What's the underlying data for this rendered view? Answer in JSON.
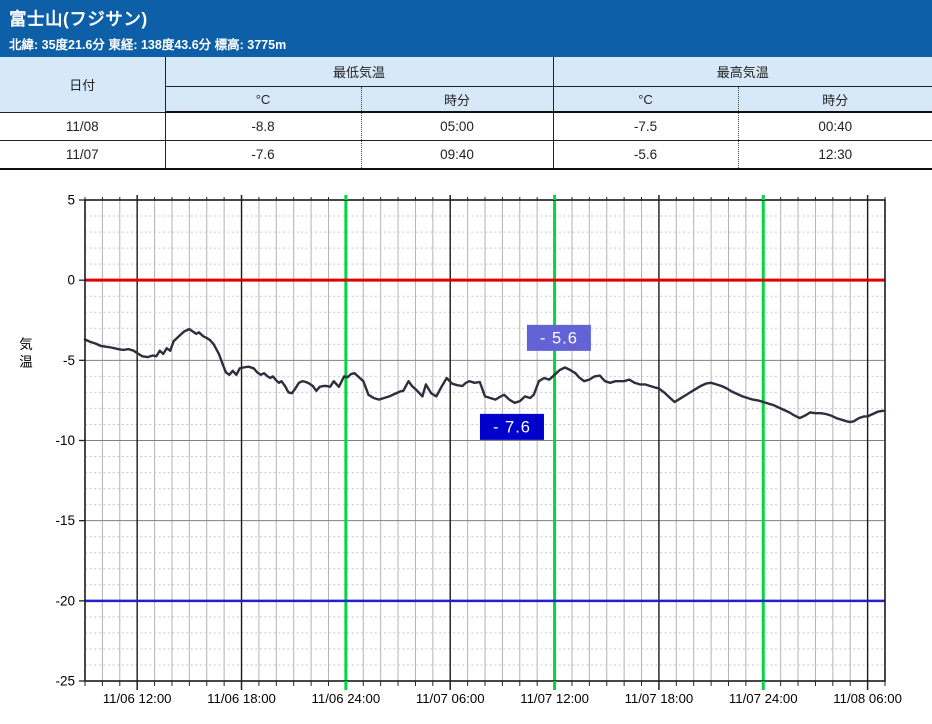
{
  "header": {
    "title": "富士山(フジサン)",
    "coordinates": "北緯: 35度21.6分 東経: 138度43.6分 標高: 3775m"
  },
  "table": {
    "col_date": "日付",
    "group_min": "最低気温",
    "group_max": "最高気温",
    "col_c": "°C",
    "col_time": "時分",
    "rows": [
      {
        "date": "11/08",
        "min_c": "-8.8",
        "min_time": "05:00",
        "max_c": "-7.5",
        "max_time": "00:40"
      },
      {
        "date": "11/07",
        "min_c": "-7.6",
        "min_time": "09:40",
        "max_c": "-5.6",
        "max_time": "12:30"
      }
    ]
  },
  "chart_data": {
    "type": "line",
    "title": "",
    "xlabel": "",
    "ylabel": "気温",
    "ylim": [
      -25,
      5
    ],
    "grid": true,
    "y_ticks": [
      5,
      0,
      -5,
      -10,
      -15,
      -20,
      -25
    ],
    "hours_span": [
      0,
      46
    ],
    "x_ticks": [
      {
        "label": "11/06 12:00",
        "hour": 3
      },
      {
        "label": "11/06 18:00",
        "hour": 9
      },
      {
        "label": "11/06 24:00",
        "hour": 15
      },
      {
        "label": "11/07 06:00",
        "hour": 21
      },
      {
        "label": "11/07 12:00",
        "hour": 27
      },
      {
        "label": "11/07 18:00",
        "hour": 33
      },
      {
        "label": "11/07 24:00",
        "hour": 39
      },
      {
        "label": "11/08 06:00",
        "hour": 45
      }
    ],
    "green_line_hours": [
      15,
      27,
      39
    ],
    "major_line_hours": [
      3,
      9,
      21,
      33,
      45
    ],
    "reference_lines": [
      {
        "value": 0,
        "color": "#e00000",
        "width": 3
      },
      {
        "value": -20,
        "color": "#2020cc",
        "width": 2.5
      }
    ],
    "colors": {
      "line": "#2e2e3e",
      "green": "#00d740",
      "grid_minor_v": "#b3b3b3",
      "grid_major_v": "#1a1a1a",
      "grid_minor_h": "#c9c9c9",
      "grid_major_h": "#808080",
      "border": "#1a1a1a",
      "tick_text": "#000000"
    },
    "annotations": [
      {
        "name": "max-temp-label",
        "text": "- 5.6",
        "hour": 27.25,
        "temp": -3.6,
        "bg": "#6363d6",
        "fg": "#ffffff"
      },
      {
        "name": "min-temp-label",
        "text": "- 7.6",
        "hour": 24.55,
        "temp": -9.15,
        "bg": "#0000cd",
        "fg": "#ffffff"
      }
    ],
    "series": [
      {
        "name": "気温",
        "points": [
          [
            0,
            -3.7
          ],
          [
            0.3,
            -3.85
          ],
          [
            0.6,
            -3.95
          ],
          [
            0.9,
            -4.1
          ],
          [
            1.2,
            -4.15
          ],
          [
            1.5,
            -4.2
          ],
          [
            1.9,
            -4.3
          ],
          [
            2.2,
            -4.35
          ],
          [
            2.5,
            -4.3
          ],
          [
            2.8,
            -4.4
          ],
          [
            3,
            -4.55
          ],
          [
            3.3,
            -4.75
          ],
          [
            3.6,
            -4.8
          ],
          [
            3.9,
            -4.7
          ],
          [
            4.1,
            -4.75
          ],
          [
            4.3,
            -4.4
          ],
          [
            4.5,
            -4.6
          ],
          [
            4.7,
            -4.25
          ],
          [
            4.9,
            -4.4
          ],
          [
            5.1,
            -3.8
          ],
          [
            5.4,
            -3.5
          ],
          [
            5.7,
            -3.2
          ],
          [
            6,
            -3.05
          ],
          [
            6.2,
            -3.2
          ],
          [
            6.4,
            -3.35
          ],
          [
            6.55,
            -3.25
          ],
          [
            6.8,
            -3.5
          ],
          [
            7,
            -3.6
          ],
          [
            7.2,
            -3.75
          ],
          [
            7.4,
            -4
          ],
          [
            7.7,
            -4.6
          ],
          [
            7.9,
            -5.2
          ],
          [
            8.1,
            -5.75
          ],
          [
            8.3,
            -5.9
          ],
          [
            8.5,
            -5.65
          ],
          [
            8.7,
            -5.9
          ],
          [
            8.9,
            -5.5
          ],
          [
            9.1,
            -5.45
          ],
          [
            9.4,
            -5.4
          ],
          [
            9.7,
            -5.5
          ],
          [
            9.9,
            -5.75
          ],
          [
            10.1,
            -5.9
          ],
          [
            10.3,
            -5.8
          ],
          [
            10.5,
            -6
          ],
          [
            10.65,
            -6.1
          ],
          [
            10.8,
            -6
          ],
          [
            11,
            -6.25
          ],
          [
            11.15,
            -6.4
          ],
          [
            11.3,
            -6.3
          ],
          [
            11.5,
            -6.6
          ],
          [
            11.7,
            -7
          ],
          [
            11.9,
            -7.05
          ],
          [
            12.1,
            -6.75
          ],
          [
            12.3,
            -6.4
          ],
          [
            12.5,
            -6.3
          ],
          [
            12.7,
            -6.35
          ],
          [
            12.9,
            -6.45
          ],
          [
            13.1,
            -6.6
          ],
          [
            13.3,
            -6.9
          ],
          [
            13.5,
            -6.65
          ],
          [
            13.7,
            -6.6
          ],
          [
            13.9,
            -6.6
          ],
          [
            14.1,
            -6.65
          ],
          [
            14.3,
            -6.3
          ],
          [
            14.6,
            -6.65
          ],
          [
            14.9,
            -6
          ],
          [
            15.1,
            -6.05
          ],
          [
            15.3,
            -5.85
          ],
          [
            15.5,
            -5.8
          ],
          [
            15.7,
            -6
          ],
          [
            16,
            -6.3
          ],
          [
            16.3,
            -7.15
          ],
          [
            16.6,
            -7.35
          ],
          [
            16.9,
            -7.45
          ],
          [
            17.2,
            -7.35
          ],
          [
            17.5,
            -7.25
          ],
          [
            17.8,
            -7.1
          ],
          [
            18.1,
            -6.95
          ],
          [
            18.3,
            -6.9
          ],
          [
            18.6,
            -6.3
          ],
          [
            18.8,
            -6.6
          ],
          [
            19.1,
            -6.9
          ],
          [
            19.4,
            -7.25
          ],
          [
            19.6,
            -6.5
          ],
          [
            19.9,
            -7.05
          ],
          [
            20.2,
            -7.25
          ],
          [
            20.5,
            -6.65
          ],
          [
            20.8,
            -6.1
          ],
          [
            21.1,
            -6.45
          ],
          [
            21.4,
            -6.55
          ],
          [
            21.7,
            -6.6
          ],
          [
            21.9,
            -6.4
          ],
          [
            22.1,
            -6.3
          ],
          [
            22.4,
            -6.4
          ],
          [
            22.7,
            -6.35
          ],
          [
            23,
            -7.25
          ],
          [
            23.3,
            -7.35
          ],
          [
            23.6,
            -7.45
          ],
          [
            23.9,
            -7.25
          ],
          [
            24.1,
            -7.15
          ],
          [
            24.4,
            -7.45
          ],
          [
            24.7,
            -7.65
          ],
          [
            25,
            -7.55
          ],
          [
            25.3,
            -7.25
          ],
          [
            25.6,
            -7.35
          ],
          [
            25.8,
            -7.15
          ],
          [
            26.1,
            -6.3
          ],
          [
            26.4,
            -6.1
          ],
          [
            26.7,
            -6.2
          ],
          [
            27,
            -5.9
          ],
          [
            27.3,
            -5.6
          ],
          [
            27.6,
            -5.45
          ],
          [
            27.9,
            -5.6
          ],
          [
            28.2,
            -5.8
          ],
          [
            28.4,
            -6.05
          ],
          [
            28.7,
            -6.3
          ],
          [
            29,
            -6.2
          ],
          [
            29.3,
            -6
          ],
          [
            29.6,
            -5.95
          ],
          [
            29.9,
            -6.3
          ],
          [
            30.2,
            -6.4
          ],
          [
            30.5,
            -6.3
          ],
          [
            31,
            -6.3
          ],
          [
            31.3,
            -6.2
          ],
          [
            31.6,
            -6.4
          ],
          [
            31.9,
            -6.5
          ],
          [
            32.2,
            -6.5
          ],
          [
            32.5,
            -6.6
          ],
          [
            32.8,
            -6.7
          ],
          [
            33,
            -6.75
          ],
          [
            33.3,
            -7
          ],
          [
            33.6,
            -7.3
          ],
          [
            33.9,
            -7.6
          ],
          [
            34.2,
            -7.4
          ],
          [
            34.5,
            -7.2
          ],
          [
            34.8,
            -7
          ],
          [
            35.1,
            -6.8
          ],
          [
            35.4,
            -6.6
          ],
          [
            35.7,
            -6.45
          ],
          [
            36,
            -6.4
          ],
          [
            36.3,
            -6.5
          ],
          [
            36.6,
            -6.6
          ],
          [
            36.9,
            -6.75
          ],
          [
            37.2,
            -6.95
          ],
          [
            37.5,
            -7.1
          ],
          [
            37.8,
            -7.25
          ],
          [
            38.1,
            -7.35
          ],
          [
            38.4,
            -7.45
          ],
          [
            38.7,
            -7.5
          ],
          [
            39,
            -7.6
          ],
          [
            39.3,
            -7.7
          ],
          [
            39.6,
            -7.8
          ],
          [
            39.9,
            -7.95
          ],
          [
            40.2,
            -8.1
          ],
          [
            40.5,
            -8.25
          ],
          [
            40.8,
            -8.45
          ],
          [
            41.1,
            -8.6
          ],
          [
            41.4,
            -8.45
          ],
          [
            41.7,
            -8.25
          ],
          [
            42,
            -8.3
          ],
          [
            42.3,
            -8.3
          ],
          [
            42.6,
            -8.35
          ],
          [
            42.9,
            -8.45
          ],
          [
            43.2,
            -8.6
          ],
          [
            43.5,
            -8.7
          ],
          [
            43.8,
            -8.8
          ],
          [
            44,
            -8.85
          ],
          [
            44.2,
            -8.8
          ],
          [
            44.5,
            -8.6
          ],
          [
            44.8,
            -8.5
          ],
          [
            45,
            -8.5
          ],
          [
            45.3,
            -8.35
          ],
          [
            45.6,
            -8.2
          ],
          [
            45.9,
            -8.15
          ]
        ]
      }
    ]
  }
}
